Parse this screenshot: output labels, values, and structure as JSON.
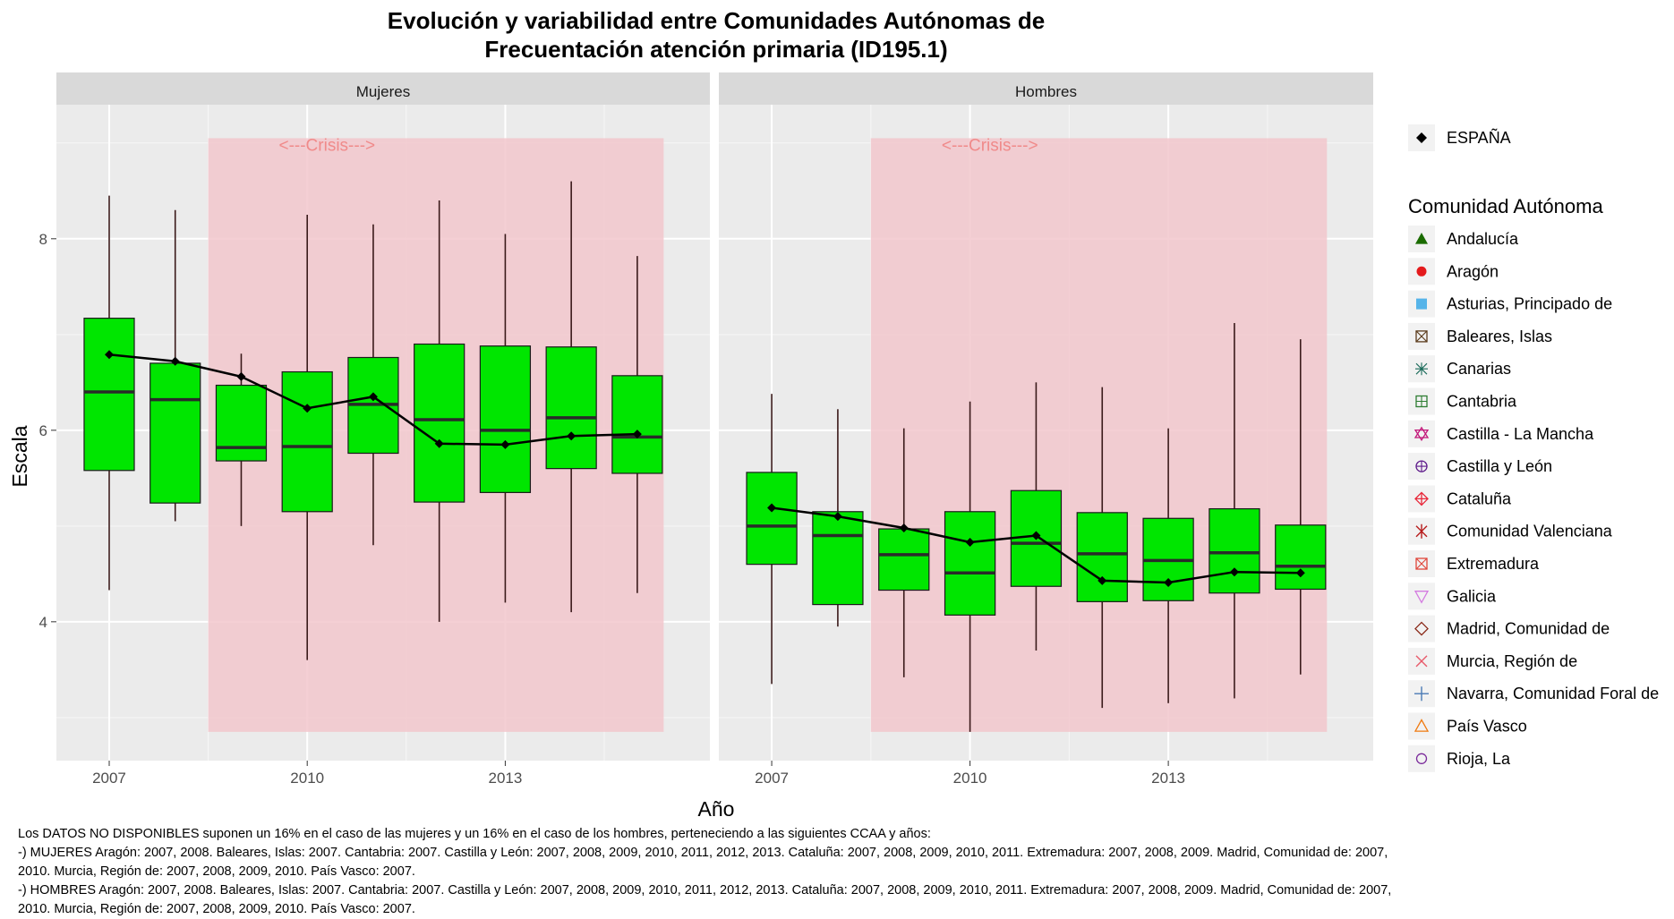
{
  "chart_data": {
    "type": "boxplot",
    "title_line1": "Evolución y variabilidad entre Comunidades Autónomas de",
    "title_line2": "Frecuentación atención primaria (ID195.1)",
    "xlabel": "Año",
    "ylabel": "Escala",
    "x_tick_labels": [
      "2007",
      "2010",
      "2013"
    ],
    "y_tick_labels": [
      "4",
      "6",
      "8"
    ],
    "x_range": [
      2006.2,
      2016.1
    ],
    "y_range": [
      2.55,
      9.4
    ],
    "crisis_label": "<---Crisis--->",
    "crisis_range_x": [
      2008.5,
      2015.4
    ],
    "crisis_range_y": [
      2.85,
      9.05
    ],
    "years": [
      2007,
      2008,
      2009,
      2010,
      2011,
      2012,
      2013,
      2014,
      2015
    ],
    "colors": {
      "box_fill": "#00e600",
      "crisis_fill": "#f2c7cc",
      "panel_bg": "#ebebeb",
      "strip_bg": "#d9d9d9",
      "espana": "#000000"
    },
    "legend": {
      "espana_label": "ESPAÑA",
      "title": "Comunidad Autónoma",
      "entries": [
        {
          "name": "Andalucía",
          "shape": "triangle-filled",
          "color": "#1a6b00"
        },
        {
          "name": "Aragón",
          "shape": "circle-filled",
          "color": "#e41a1c"
        },
        {
          "name": "Asturias, Principado de",
          "shape": "square-filled",
          "color": "#56b4e9"
        },
        {
          "name": "Baleares, Islas",
          "shape": "square-x",
          "color": "#5a3a1a"
        },
        {
          "name": "Canarias",
          "shape": "square-star",
          "color": "#1b6b5a"
        },
        {
          "name": "Cantabria",
          "shape": "square-plus",
          "color": "#2e7d32"
        },
        {
          "name": "Castilla - La Mancha",
          "shape": "star-of-david",
          "color": "#c2187a"
        },
        {
          "name": "Castilla y León",
          "shape": "circle-plus",
          "color": "#5e1a8a"
        },
        {
          "name": "Cataluña",
          "shape": "diamond-plus",
          "color": "#e8283a"
        },
        {
          "name": "Comunidad Valenciana",
          "shape": "asterisk",
          "color": "#b71c1c"
        },
        {
          "name": "Extremadura",
          "shape": "square-x",
          "color": "#e0453a"
        },
        {
          "name": "Galicia",
          "shape": "triangle-down",
          "color": "#d47be0"
        },
        {
          "name": "Madrid, Comunidad de",
          "shape": "diamond",
          "color": "#8b2a1a"
        },
        {
          "name": "Murcia, Región de",
          "shape": "x",
          "color": "#e85a6a"
        },
        {
          "name": "Navarra, Comunidad Foral de",
          "shape": "plus",
          "color": "#4a7ab5"
        },
        {
          "name": "País Vasco",
          "shape": "triangle",
          "color": "#f07a10"
        },
        {
          "name": "Rioja, La",
          "shape": "circle",
          "color": "#7a2a9a"
        }
      ]
    },
    "panels": [
      {
        "name": "Mujeres",
        "boxes": [
          {
            "year": 2007,
            "q1": 5.58,
            "median": 6.4,
            "q3": 7.17,
            "lo": 4.33,
            "hi": 8.45,
            "espana": 6.79
          },
          {
            "year": 2008,
            "q1": 5.24,
            "median": 6.32,
            "q3": 6.7,
            "lo": 5.05,
            "hi": 8.3,
            "espana": 6.72
          },
          {
            "year": 2009,
            "q1": 5.68,
            "median": 5.82,
            "q3": 6.47,
            "lo": 5.0,
            "hi": 6.8,
            "espana": 6.56
          },
          {
            "year": 2010,
            "q1": 5.15,
            "median": 5.83,
            "q3": 6.61,
            "lo": 3.6,
            "hi": 8.25,
            "espana": 6.23
          },
          {
            "year": 2011,
            "q1": 5.76,
            "median": 6.27,
            "q3": 6.76,
            "lo": 4.8,
            "hi": 8.15,
            "espana": 6.35
          },
          {
            "year": 2012,
            "q1": 5.25,
            "median": 6.11,
            "q3": 6.9,
            "lo": 4.0,
            "hi": 8.4,
            "espana": 5.86
          },
          {
            "year": 2013,
            "q1": 5.35,
            "median": 6.0,
            "q3": 6.88,
            "lo": 4.2,
            "hi": 8.05,
            "espana": 5.85
          },
          {
            "year": 2014,
            "q1": 5.6,
            "median": 6.13,
            "q3": 6.87,
            "lo": 4.1,
            "hi": 8.6,
            "espana": 5.94
          },
          {
            "year": 2015,
            "q1": 5.55,
            "median": 5.93,
            "q3": 6.57,
            "lo": 4.3,
            "hi": 7.82,
            "espana": 5.96
          }
        ]
      },
      {
        "name": "Hombres",
        "boxes": [
          {
            "year": 2007,
            "q1": 4.6,
            "median": 5.0,
            "q3": 5.56,
            "lo": 3.35,
            "hi": 6.38,
            "espana": 5.19
          },
          {
            "year": 2008,
            "q1": 4.18,
            "median": 4.9,
            "q3": 5.15,
            "lo": 3.95,
            "hi": 6.22,
            "espana": 5.1
          },
          {
            "year": 2009,
            "q1": 4.33,
            "median": 4.7,
            "q3": 4.97,
            "lo": 3.42,
            "hi": 6.02,
            "espana": 4.98
          },
          {
            "year": 2010,
            "q1": 4.07,
            "median": 4.51,
            "q3": 5.15,
            "lo": 2.85,
            "hi": 6.3,
            "espana": 4.83
          },
          {
            "year": 2011,
            "q1": 4.37,
            "median": 4.82,
            "q3": 5.37,
            "lo": 3.7,
            "hi": 6.5,
            "espana": 4.9
          },
          {
            "year": 2012,
            "q1": 4.21,
            "median": 4.71,
            "q3": 5.14,
            "lo": 3.1,
            "hi": 6.45,
            "espana": 4.43
          },
          {
            "year": 2013,
            "q1": 4.22,
            "median": 4.64,
            "q3": 5.08,
            "lo": 3.15,
            "hi": 6.02,
            "espana": 4.41
          },
          {
            "year": 2014,
            "q1": 4.3,
            "median": 4.72,
            "q3": 5.18,
            "lo": 3.2,
            "hi": 7.12,
            "espana": 4.52
          },
          {
            "year": 2015,
            "q1": 4.34,
            "median": 4.58,
            "q3": 5.01,
            "lo": 3.45,
            "hi": 6.95,
            "espana": 4.51
          }
        ]
      }
    ]
  },
  "notes": [
    "Los DATOS NO DISPONIBLES suponen un 16% en el caso de las mujeres y un 16% en el caso de los hombres, perteneciendo a las siguientes CCAA y años:",
    "-) MUJERES Aragón: 2007, 2008. Baleares, Islas: 2007. Cantabria: 2007. Castilla y León: 2007, 2008, 2009, 2010, 2011, 2012, 2013. Cataluña: 2007, 2008, 2009, 2010, 2011. Extremadura: 2007, 2008, 2009. Madrid, Comunidad de: 2007,",
    "2010. Murcia, Región de: 2007, 2008, 2009, 2010. País Vasco: 2007.",
    "-) HOMBRES Aragón: 2007, 2008. Baleares, Islas: 2007. Cantabria: 2007. Castilla y León: 2007, 2008, 2009, 2010, 2011, 2012, 2013. Cataluña: 2007, 2008, 2009, 2010, 2011. Extremadura: 2007, 2008, 2009. Madrid, Comunidad de: 2007,",
    "2010. Murcia, Región de: 2007, 2008, 2009, 2010. País Vasco: 2007."
  ]
}
